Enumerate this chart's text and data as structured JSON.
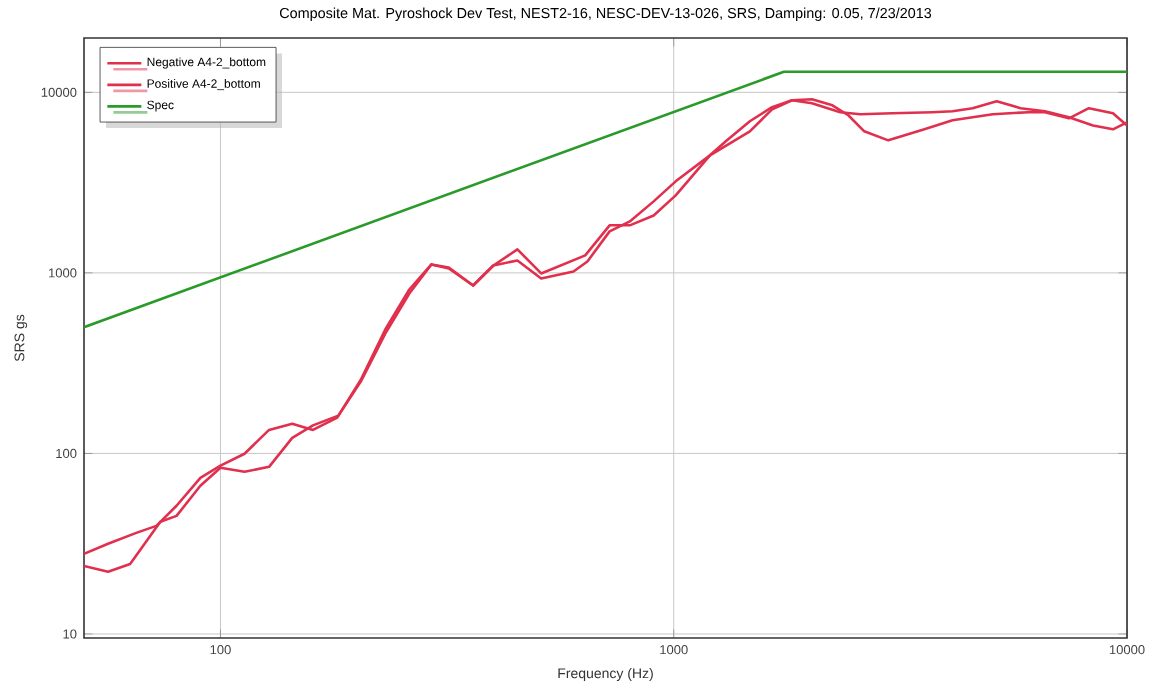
{
  "chart_data": {
    "type": "line",
    "title": "Composite Mat. Pyroshock Dev Test, NEST2-16, NESC-DEV-13-026, SRS, Damping: 0.05, 7/23/2013",
    "xlabel": "Frequency (Hz)",
    "ylabel": "SRS gs",
    "log": "xy",
    "grid": true,
    "legend": "top left",
    "marker": "none",
    "line_style": "solid",
    "xlim": [
      50,
      10000
    ],
    "ylim": [
      9.5,
      20000
    ],
    "xticks": [
      100,
      1000,
      10000
    ],
    "yticks": [
      10,
      100,
      1000,
      10000
    ],
    "series": [
      {
        "name": "Negative A4-2_bottom",
        "color": "#e0304e",
        "x": [
          50,
          56.5,
          65.2,
          72.2,
          80,
          90.3,
          100,
          113,
          128,
          144,
          160,
          181,
          204,
          231,
          261,
          292,
          319,
          361,
          400,
          452,
          510,
          638,
          722,
          800,
          903,
          1010,
          1202,
          1472,
          1648,
          1824,
          2018,
          2239,
          2427,
          2632,
          2974,
          3573,
          4121,
          5057,
          6067,
          6591,
          7447,
          8241,
          9311,
          10000
        ],
        "values": [
          27.8,
          31.6,
          36.3,
          39.7,
          51.3,
          73.3,
          85.5,
          99.6,
          135,
          146,
          135,
          158,
          256,
          486,
          809,
          1114,
          1057,
          851,
          1099,
          1349,
          993,
          1250,
          1834,
          1834,
          2080,
          2686,
          4477,
          6081,
          8054,
          9037,
          9163,
          8476,
          7464,
          6081,
          5420,
          6237,
          7000,
          7568,
          7762,
          7762,
          7179,
          8166,
          7656,
          6560
        ]
      },
      {
        "name": "Positive A4-2_bottom",
        "color": "#e0304e",
        "x": [
          50,
          56.5,
          63.2,
          73.7,
          80,
          90.3,
          100,
          113,
          128,
          144,
          160,
          182,
          204,
          231,
          261,
          292,
          319,
          361,
          400,
          452,
          510,
          601,
          645,
          722,
          800,
          903,
          1010,
          1202,
          1303,
          1472,
          1648,
          1824,
          2018,
          2330,
          2580,
          3035,
          3721,
          4121,
          4564,
          5158,
          5825,
          6591,
          7447,
          8414,
          9311,
          10000
        ],
        "values": [
          23.8,
          22.1,
          24.4,
          41.8,
          45.1,
          66.2,
          83.4,
          79.1,
          84.3,
          122,
          143,
          162,
          250,
          461,
          769,
          1114,
          1072,
          851,
          1099,
          1172,
          931,
          1018,
          1156,
          1698,
          1928,
          2489,
          3214,
          4477,
          5358,
          6918,
          8279,
          9037,
          8710,
          7762,
          7568,
          7656,
          7762,
          7852,
          8166,
          8913,
          8166,
          7852,
          7278,
          6560,
          6237,
          6823
        ]
      },
      {
        "name": "Spec",
        "color": "#2a9a2a",
        "x": [
          50,
          1750,
          10000
        ],
        "values": [
          500,
          13000,
          13000
        ]
      }
    ]
  }
}
